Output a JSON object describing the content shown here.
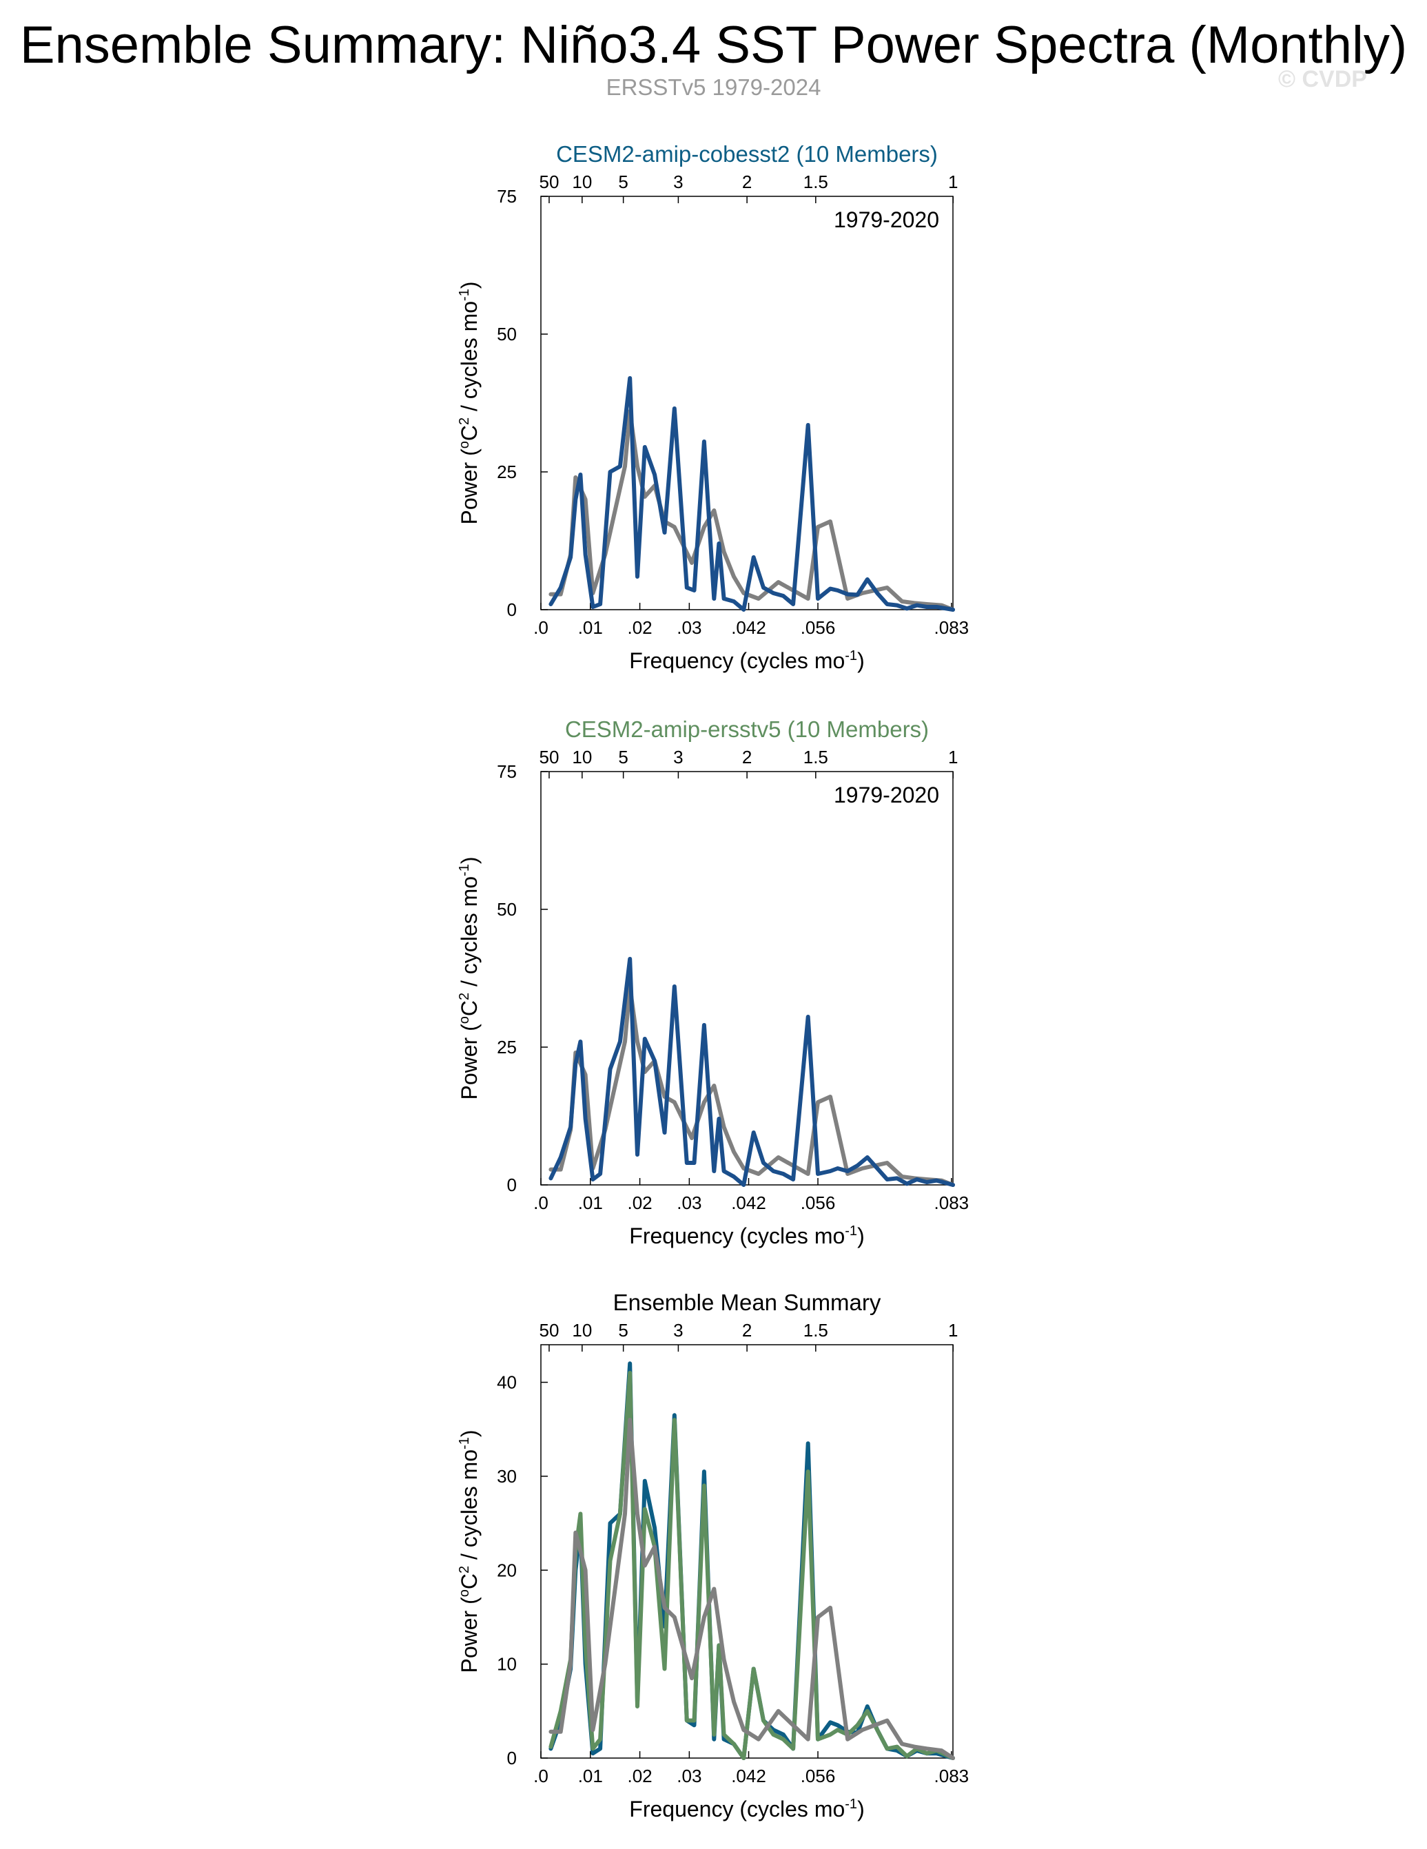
{
  "title": "Ensemble Summary: Niño3.4 SST Power Spectra (Monthly)",
  "subtitle": "ERSSTv5 1979-2024",
  "copyright": "© CVDP",
  "colors": {
    "observations": "#808080",
    "cobesst2": "#0d5e85",
    "ersstv5": "#5f8f5f",
    "ensemble_line": "#1b4f8c"
  },
  "common": {
    "xlabel": "Frequency (cycles mo",
    "xlabel_sup": "-1",
    "xlabel_end": ")",
    "ylabel_pre": "Power (",
    "ylabel_o": "o",
    "ylabel_mid": "C",
    "ylabel_2": "2",
    "ylabel_post": " / cycles mo",
    "ylabel_sup": "-1",
    "ylabel_end": ")",
    "bottom_ticks": [
      {
        "v": 0.0,
        "label": ".0"
      },
      {
        "v": 0.01,
        "label": ".01"
      },
      {
        "v": 0.02,
        "label": ".02"
      },
      {
        "v": 0.03,
        "label": ".03"
      },
      {
        "v": 0.042,
        "label": ".042"
      },
      {
        "v": 0.056,
        "label": ".056"
      },
      {
        "v": 0.083,
        "label": ".083"
      }
    ],
    "top_ticks": [
      {
        "period_years": 50,
        "label": "50"
      },
      {
        "period_years": 10,
        "label": "10"
      },
      {
        "period_years": 5,
        "label": "5"
      },
      {
        "period_years": 3,
        "label": "3"
      },
      {
        "period_years": 2,
        "label": "2"
      },
      {
        "period_years": 1.5,
        "label": "1.5"
      },
      {
        "period_years": 1,
        "label": "1"
      }
    ],
    "xlim": [
      0,
      0.0833
    ]
  },
  "panels": [
    {
      "title": "CESM2-amip-cobesst2 (10 Members)",
      "title_color": "#0d5e85",
      "annotation": "1979-2020"
    },
    {
      "title": "CESM2-amip-ersstv5 (10 Members)",
      "title_color": "#5f8f5f",
      "annotation": "1979-2020"
    },
    {
      "title": "Ensemble Mean Summary",
      "title_color": "#000000",
      "annotation": ""
    }
  ],
  "chart_data": [
    {
      "type": "line",
      "title": "CESM2-amip-cobesst2 (10 Members)",
      "annotation": "1979-2020",
      "ylim": [
        0,
        75
      ],
      "yticks": [
        0,
        25,
        50,
        75
      ],
      "series": [
        {
          "color": "#808080",
          "x": [
            0.002,
            0.004,
            0.006,
            0.007,
            0.009,
            0.0105,
            0.013,
            0.017,
            0.018,
            0.0195,
            0.021,
            0.023,
            0.025,
            0.027,
            0.0305,
            0.033,
            0.035,
            0.037,
            0.039,
            0.041,
            0.044,
            0.048,
            0.051,
            0.054,
            0.056,
            0.0585,
            0.062,
            0.065,
            0.07,
            0.073,
            0.0755,
            0.078,
            0.081,
            0.0833
          ],
          "y": [
            2.8,
            2.8,
            10,
            24,
            20,
            3,
            10,
            26,
            36,
            26,
            20.5,
            22.5,
            16,
            15,
            8.5,
            15,
            18,
            10.5,
            6,
            3,
            2,
            5,
            3.5,
            2,
            15,
            16,
            2,
            3,
            4,
            1.5,
            1.2,
            1,
            0.8,
            0
          ]
        },
        {
          "color": "#1b4f8c",
          "x": [
            0.002,
            0.004,
            0.006,
            0.007,
            0.008,
            0.009,
            0.0105,
            0.012,
            0.014,
            0.016,
            0.018,
            0.0195,
            0.021,
            0.023,
            0.025,
            0.027,
            0.0295,
            0.031,
            0.033,
            0.035,
            0.036,
            0.037,
            0.039,
            0.041,
            0.043,
            0.045,
            0.047,
            0.049,
            0.051,
            0.054,
            0.056,
            0.0585,
            0.06,
            0.062,
            0.064,
            0.066,
            0.068,
            0.07,
            0.072,
            0.074,
            0.076,
            0.078,
            0.08,
            0.0833
          ],
          "y": [
            1,
            4,
            9.5,
            20,
            24.5,
            10,
            0.5,
            1,
            25,
            26,
            42,
            6,
            29.5,
            24.5,
            14,
            36.5,
            4,
            3.5,
            30.5,
            2,
            12,
            2,
            1.5,
            0,
            9.5,
            4,
            3,
            2.5,
            1,
            33.5,
            2,
            3.8,
            3.5,
            2.8,
            2.7,
            5.5,
            3,
            1,
            0.8,
            0.2,
            0.8,
            0.5,
            0.5,
            0
          ]
        }
      ]
    },
    {
      "type": "line",
      "title": "CESM2-amip-ersstv5 (10 Members)",
      "annotation": "1979-2020",
      "ylim": [
        0,
        75
      ],
      "yticks": [
        0,
        25,
        50,
        75
      ],
      "series": [
        {
          "color": "#808080",
          "x": [
            0.002,
            0.004,
            0.006,
            0.007,
            0.009,
            0.0105,
            0.013,
            0.017,
            0.018,
            0.0195,
            0.021,
            0.023,
            0.025,
            0.027,
            0.0305,
            0.033,
            0.035,
            0.037,
            0.039,
            0.041,
            0.044,
            0.048,
            0.051,
            0.054,
            0.056,
            0.0585,
            0.062,
            0.065,
            0.07,
            0.073,
            0.0755,
            0.078,
            0.081,
            0.0833
          ],
          "y": [
            2.8,
            2.8,
            10,
            24,
            20,
            3,
            10,
            26,
            36,
            26,
            20.5,
            22.5,
            16,
            15,
            8.5,
            15,
            18,
            10.5,
            6,
            3,
            2,
            5,
            3.5,
            2,
            15,
            16,
            2,
            3,
            4,
            1.5,
            1.2,
            1,
            0.8,
            0
          ]
        },
        {
          "color": "#1b4f8c",
          "x": [
            0.002,
            0.004,
            0.006,
            0.007,
            0.008,
            0.009,
            0.0105,
            0.012,
            0.014,
            0.016,
            0.018,
            0.0195,
            0.021,
            0.023,
            0.025,
            0.027,
            0.0295,
            0.031,
            0.033,
            0.035,
            0.036,
            0.037,
            0.039,
            0.041,
            0.043,
            0.045,
            0.047,
            0.049,
            0.051,
            0.054,
            0.056,
            0.0585,
            0.06,
            0.062,
            0.064,
            0.066,
            0.068,
            0.07,
            0.072,
            0.074,
            0.076,
            0.078,
            0.08,
            0.0833
          ],
          "y": [
            1.2,
            5,
            10.5,
            22,
            26,
            12,
            1,
            2,
            21,
            26,
            41,
            5.5,
            26.5,
            22.5,
            9.5,
            36,
            4,
            4,
            29,
            2.5,
            12,
            2.5,
            1.5,
            0,
            9.5,
            4,
            2.5,
            2,
            1,
            30.5,
            2,
            2.5,
            3,
            2.5,
            3.5,
            5,
            3,
            1,
            1.2,
            0.2,
            1,
            0.5,
            0.8,
            0
          ]
        }
      ]
    },
    {
      "type": "line",
      "title": "Ensemble Mean Summary",
      "ylim": [
        0,
        44
      ],
      "yticks": [
        0,
        10,
        20,
        30,
        40
      ],
      "series": [
        {
          "color": "#0d5e85",
          "x": [
            0.002,
            0.004,
            0.006,
            0.007,
            0.008,
            0.009,
            0.0105,
            0.012,
            0.014,
            0.016,
            0.018,
            0.0195,
            0.021,
            0.023,
            0.025,
            0.027,
            0.0295,
            0.031,
            0.033,
            0.035,
            0.036,
            0.037,
            0.039,
            0.041,
            0.043,
            0.045,
            0.047,
            0.049,
            0.051,
            0.054,
            0.056,
            0.0585,
            0.06,
            0.062,
            0.064,
            0.066,
            0.068,
            0.07,
            0.072,
            0.074,
            0.076,
            0.078,
            0.08,
            0.0833
          ],
          "y": [
            1,
            4,
            9.5,
            20,
            24.5,
            10,
            0.5,
            1,
            25,
            26,
            42,
            6,
            29.5,
            24.5,
            14,
            36.5,
            4,
            3.5,
            30.5,
            2,
            12,
            2,
            1.5,
            0,
            9.5,
            4,
            3,
            2.5,
            1,
            33.5,
            2,
            3.8,
            3.5,
            2.8,
            2.7,
            5.5,
            3,
            1,
            0.8,
            0.2,
            0.8,
            0.5,
            0.5,
            0
          ]
        },
        {
          "color": "#5f8f5f",
          "x": [
            0.002,
            0.004,
            0.006,
            0.007,
            0.008,
            0.009,
            0.0105,
            0.012,
            0.014,
            0.016,
            0.018,
            0.0195,
            0.021,
            0.023,
            0.025,
            0.027,
            0.0295,
            0.031,
            0.033,
            0.035,
            0.036,
            0.037,
            0.039,
            0.041,
            0.043,
            0.045,
            0.047,
            0.049,
            0.051,
            0.054,
            0.056,
            0.0585,
            0.06,
            0.062,
            0.064,
            0.066,
            0.068,
            0.07,
            0.072,
            0.074,
            0.076,
            0.078,
            0.08,
            0.0833
          ],
          "y": [
            1.2,
            5,
            10.5,
            22,
            26,
            12,
            1,
            2,
            21,
            26,
            41,
            5.5,
            26.5,
            22.5,
            9.5,
            36,
            4,
            4,
            29,
            2.5,
            12,
            2.5,
            1.5,
            0,
            9.5,
            4,
            2.5,
            2,
            1,
            30.5,
            2,
            2.5,
            3,
            2.5,
            3.5,
            5,
            3,
            1,
            1.2,
            0.2,
            1,
            0.5,
            0.8,
            0
          ]
        },
        {
          "color": "#808080",
          "x": [
            0.002,
            0.004,
            0.006,
            0.007,
            0.009,
            0.0105,
            0.013,
            0.017,
            0.018,
            0.0195,
            0.021,
            0.023,
            0.025,
            0.027,
            0.0305,
            0.033,
            0.035,
            0.037,
            0.039,
            0.041,
            0.044,
            0.048,
            0.051,
            0.054,
            0.056,
            0.0585,
            0.062,
            0.065,
            0.07,
            0.073,
            0.0755,
            0.078,
            0.081,
            0.0833
          ],
          "y": [
            2.8,
            2.8,
            10,
            24,
            20,
            3,
            10,
            26,
            36,
            26,
            20.5,
            22.5,
            16,
            15,
            8.5,
            15,
            18,
            10.5,
            6,
            3,
            2,
            5,
            3.5,
            2,
            15,
            16,
            2,
            3,
            4,
            1.5,
            1.2,
            1,
            0.8,
            0
          ]
        }
      ]
    }
  ]
}
